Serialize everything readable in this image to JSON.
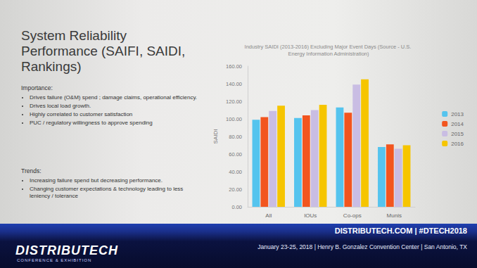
{
  "chart_data": {
    "type": "bar",
    "title": "Industry SAIDI (2013-2016) Excluding Major Event Days (Source - U.S. Energy Information Administration)",
    "y_label": "SAIDI",
    "categories": [
      "All",
      "IOUs",
      "Co-ops",
      "Munis"
    ],
    "series": [
      {
        "name": "2013",
        "color": "#55c4ee",
        "values": [
          99,
          101,
          113,
          68
        ]
      },
      {
        "name": "2014",
        "color": "#f2551f",
        "values": [
          102,
          104,
          107,
          71
        ]
      },
      {
        "name": "2015",
        "color": "#c9bde3",
        "values": [
          109,
          110,
          139,
          66
        ]
      },
      {
        "name": "2016",
        "color": "#f6c500",
        "values": [
          115,
          116,
          145,
          70
        ]
      }
    ],
    "ylim": [
      0,
      160
    ],
    "yticks": [
      {
        "value": 0,
        "label": "0.00"
      },
      {
        "value": 20,
        "label": "20.00"
      },
      {
        "value": 40,
        "label": "40.00"
      },
      {
        "value": 60,
        "label": "60.00"
      },
      {
        "value": 80,
        "label": "80.00"
      },
      {
        "value": 100,
        "label": "100.00"
      },
      {
        "value": 120,
        "label": "120.00"
      },
      {
        "value": 140,
        "label": "140.00"
      },
      {
        "value": 160,
        "label": "160.00"
      }
    ],
    "grid": false,
    "legend": "right"
  },
  "slide": {
    "title": "System Reliability Performance (SAIFI, SAIDI, Rankings)",
    "importance_header": "Importance:",
    "importance": [
      "Drives failure (O&M) spend ; damage claims, operational efficiency.",
      "Drives local load growth.",
      "Highly correlated to customer satisfaction",
      "PUC / regulatory willingness to approve spending"
    ],
    "trends_header": "Trends:",
    "trends": [
      "Increasing failure spend but decreasing performance.",
      "Changing customer expectations & technology leading to less leniency / tolerance"
    ]
  },
  "banner": {
    "logo": "DISTRIBUTECH",
    "logo_subtitle": "CONFERENCE & EXHIBITION",
    "site": "DISTRIBUTECH.COM | #DTECH2018",
    "dates": "January 23-25, 2018 | Henry B. Gonzalez Convention Center | San Antonio, TX"
  }
}
